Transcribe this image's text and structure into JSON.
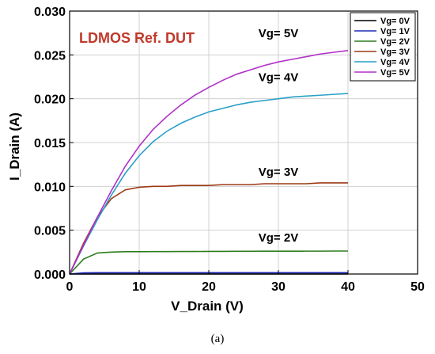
{
  "chart_data": {
    "type": "line",
    "title": "LDMOS Ref. DUT",
    "title_color": "#c0392b",
    "xlabel": "V_Drain (V)",
    "ylabel": "I_Drain (A)",
    "xlim": [
      0,
      50
    ],
    "ylim": [
      0,
      0.03
    ],
    "x_ticks": [
      0,
      10,
      20,
      30,
      40,
      50
    ],
    "x_tick_labels": [
      "0",
      "10",
      "20",
      "30",
      "40",
      "50"
    ],
    "y_ticks": [
      0,
      0.005,
      0.01,
      0.015,
      0.02,
      0.025,
      0.03
    ],
    "y_tick_labels": [
      "0.000",
      "0.005",
      "0.010",
      "0.015",
      "0.020",
      "0.025",
      "0.030"
    ],
    "grid": true,
    "legend_position": "top-right",
    "x": [
      0,
      2,
      4,
      6,
      8,
      10,
      12,
      14,
      16,
      18,
      20,
      22,
      24,
      26,
      28,
      30,
      32,
      34,
      36,
      38,
      40
    ],
    "series": [
      {
        "name": "Vg= 0V",
        "color": "#000000",
        "values": [
          0,
          1e-05,
          1e-05,
          1e-05,
          1e-05,
          1e-05,
          1e-05,
          1e-05,
          1e-05,
          1e-05,
          1e-05,
          1e-05,
          1e-05,
          1e-05,
          1e-05,
          1e-05,
          1e-05,
          1e-05,
          1e-05,
          1e-05,
          1e-05
        ]
      },
      {
        "name": "Vg= 1V",
        "color": "#1f2bb8",
        "values": [
          0,
          0.00013,
          0.00015,
          0.00015,
          0.00015,
          0.00015,
          0.00015,
          0.00015,
          0.00015,
          0.00015,
          0.00015,
          0.00015,
          0.00015,
          0.00015,
          0.00015,
          0.00015,
          0.00015,
          0.00015,
          0.00015,
          0.00015,
          0.00015
        ]
      },
      {
        "name": "Vg= 2V",
        "color": "#2e7d1e",
        "values": [
          0,
          0.0017,
          0.0024,
          0.0025,
          0.00255,
          0.00255,
          0.00256,
          0.00256,
          0.00257,
          0.00257,
          0.00258,
          0.00258,
          0.00259,
          0.00259,
          0.0026,
          0.0026,
          0.0026,
          0.00261,
          0.00261,
          0.00262,
          0.00262
        ]
      },
      {
        "name": "Vg= 3V",
        "color": "#9c3a14",
        "values": [
          0,
          0.0035,
          0.0065,
          0.0086,
          0.0096,
          0.0099,
          0.01,
          0.01,
          0.0101,
          0.0101,
          0.0101,
          0.0102,
          0.0102,
          0.0102,
          0.0103,
          0.0103,
          0.0103,
          0.0103,
          0.0104,
          0.0104,
          0.0104
        ]
      },
      {
        "name": "Vg= 4V",
        "color": "#2aa0c8",
        "values": [
          0,
          0.0032,
          0.0062,
          0.009,
          0.0115,
          0.0135,
          0.0151,
          0.0163,
          0.0172,
          0.0179,
          0.0185,
          0.0189,
          0.0193,
          0.0196,
          0.0198,
          0.02,
          0.0202,
          0.0203,
          0.0204,
          0.0205,
          0.0206
        ]
      },
      {
        "name": "Vg= 5V",
        "color": "#b030c8",
        "values": [
          0,
          0.0033,
          0.0065,
          0.0095,
          0.0123,
          0.0146,
          0.0165,
          0.018,
          0.0193,
          0.0204,
          0.0213,
          0.0221,
          0.0228,
          0.0233,
          0.0238,
          0.0242,
          0.0245,
          0.0248,
          0.0251,
          0.0253,
          0.0255
        ]
      }
    ],
    "annotations": [
      {
        "text": "Vg= 5V",
        "x": 30,
        "y": 0.027
      },
      {
        "text": "Vg= 4V",
        "x": 30,
        "y": 0.022
      },
      {
        "text": "Vg= 3V",
        "x": 30,
        "y": 0.0112
      },
      {
        "text": "Vg= 2V",
        "x": 30,
        "y": 0.0037
      }
    ]
  },
  "caption": "(a)"
}
